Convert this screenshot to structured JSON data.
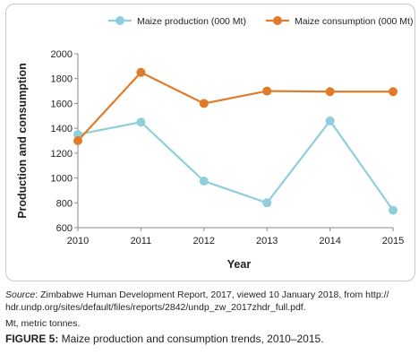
{
  "chart_data": {
    "type": "line",
    "x": [
      2010,
      2011,
      2012,
      2013,
      2014,
      2015
    ],
    "series": [
      {
        "name": "Maize production (000 Mt)",
        "color": "#8ecfdb",
        "values": [
          1350,
          1450,
          975,
          800,
          1460,
          740
        ]
      },
      {
        "name": "Maize consumption (000 Mt)",
        "color": "#e07b2c",
        "values": [
          1300,
          1850,
          1600,
          1700,
          1695,
          1695
        ]
      }
    ],
    "ylim": [
      600,
      2000
    ],
    "yticks": [
      600,
      800,
      1000,
      1200,
      1400,
      1600,
      1800,
      2000
    ],
    "xlabel": "Year",
    "ylabel": "Production and consumption",
    "grid": false,
    "legend": "top"
  },
  "caption": {
    "source_label": "Source",
    "source_text": ": Zimbabwe Human Development Report, 2017, viewed 10 January 2018, from http://",
    "source_text2": "hdr.undp.org/sites/default/files/reports/2842/undp_zw_2017zhdr_full.pdf.",
    "note": "Mt, metric tonnes.",
    "figure_label": "FIGURE 5:",
    "figure_text": " Maize production and consumption trends, 2010–2015."
  }
}
